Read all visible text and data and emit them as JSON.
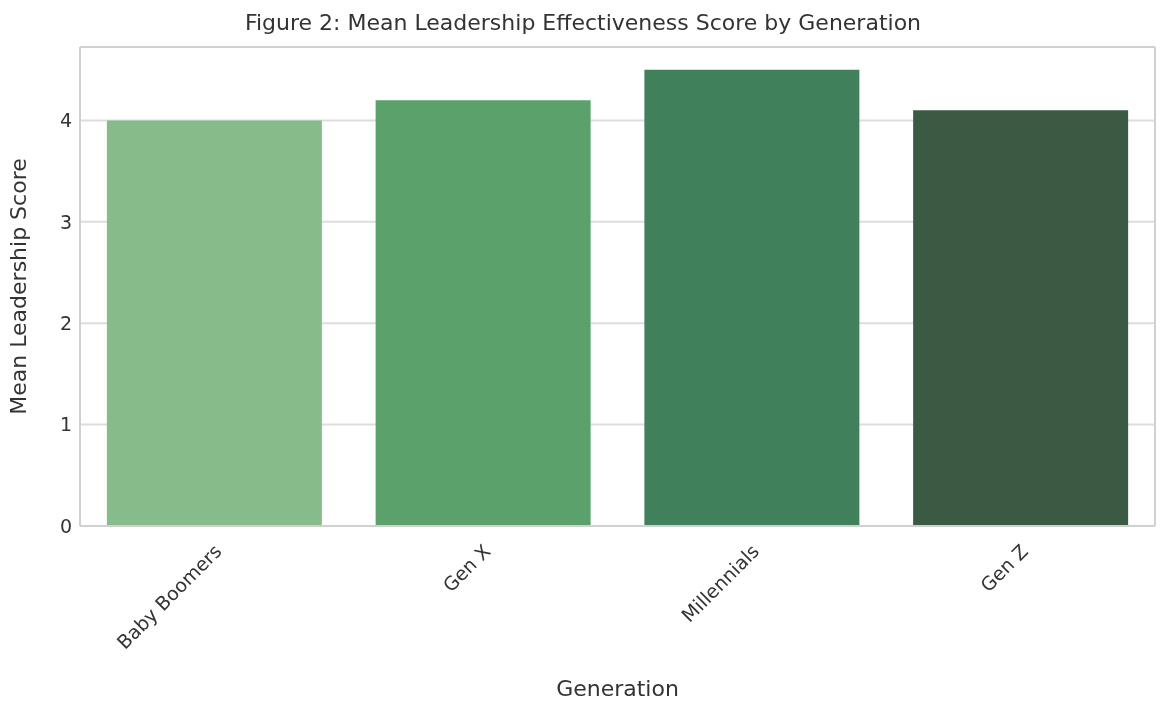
{
  "chart_data": {
    "type": "bar",
    "title": "Figure 2: Mean Leadership Effectiveness Score by Generation",
    "xlabel": "Generation",
    "ylabel": "Mean Leadership Score",
    "categories": [
      "Baby Boomers",
      "Gen X",
      "Millennials",
      "Gen Z"
    ],
    "values": [
      4.0,
      4.2,
      4.5,
      4.1
    ],
    "colors": [
      "#86bc8a",
      "#5ba16b",
      "#40805a",
      "#3b5a44"
    ],
    "ylim": [
      0,
      4.725
    ],
    "yticks": [
      0,
      1,
      2,
      3,
      4
    ],
    "grid": "y"
  }
}
